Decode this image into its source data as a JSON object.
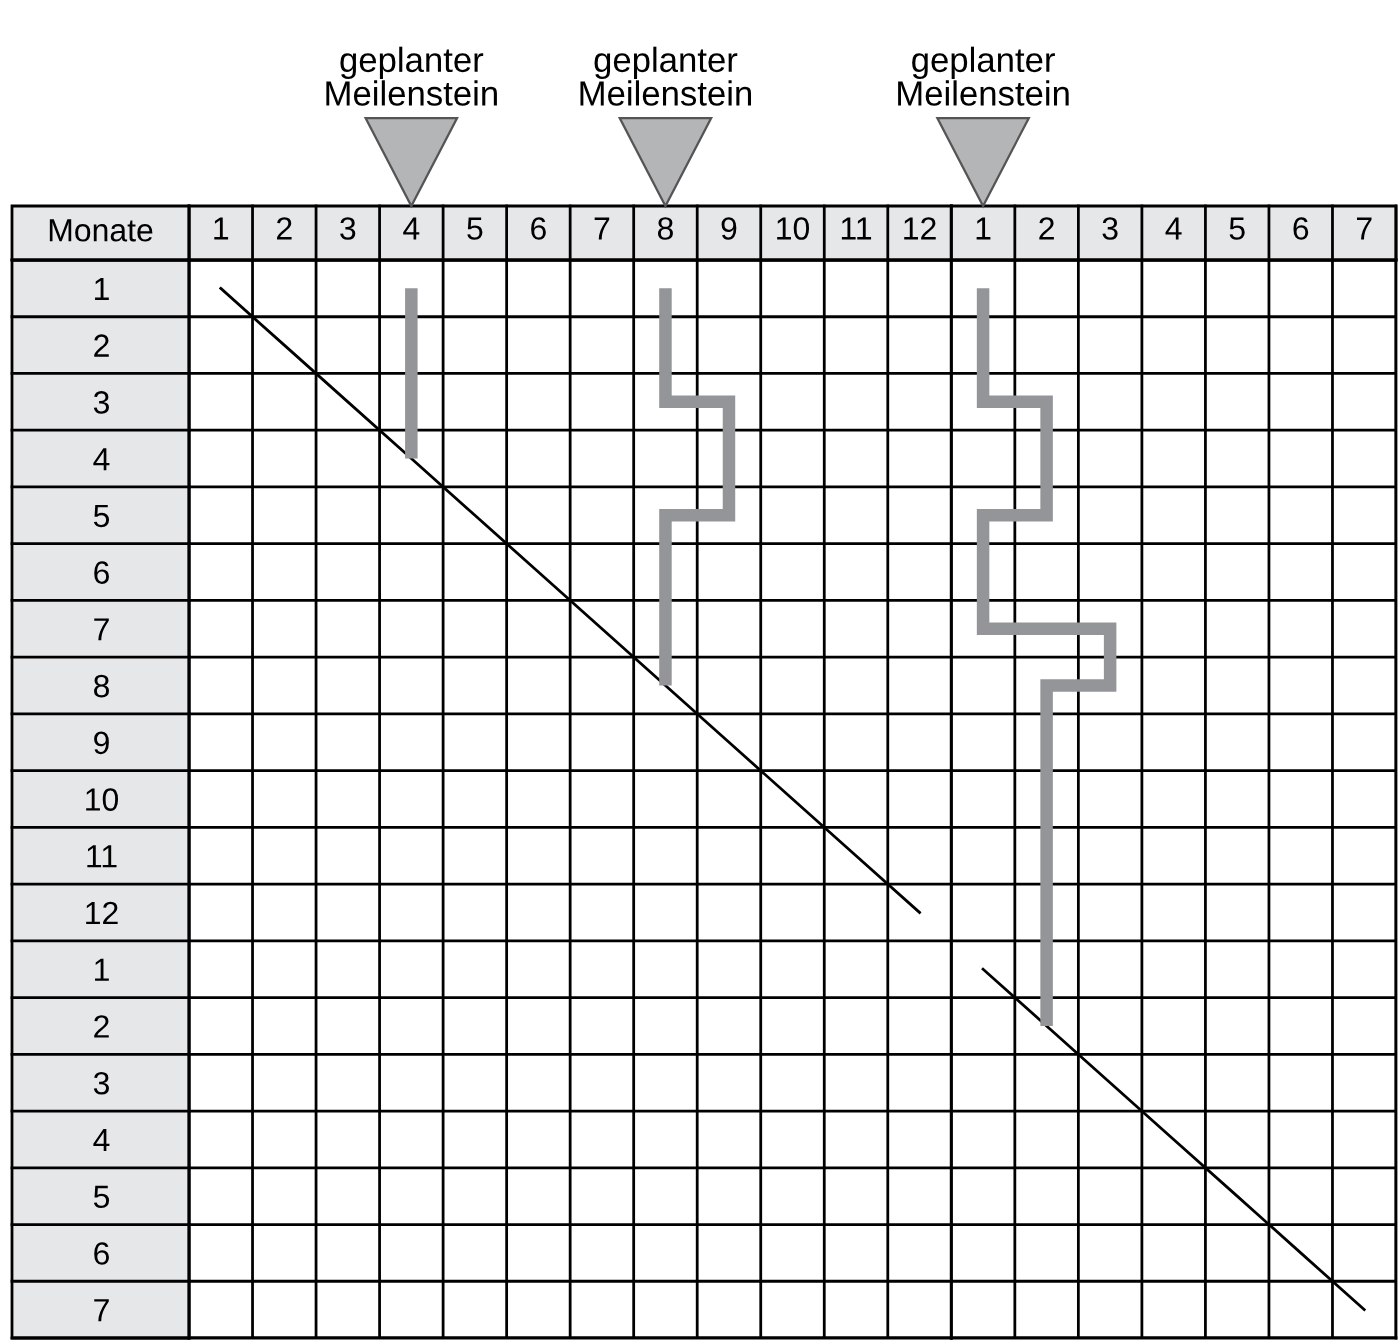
{
  "chart_data": [
    {
      "type": "step",
      "orientation": "horizontal",
      "ylabel": "Monate",
      "categories": [
        "1",
        "2",
        "3",
        "4",
        "5",
        "6",
        "7",
        "8",
        "9",
        "10",
        "11",
        "12",
        "1",
        "2",
        "3",
        "4",
        "5",
        "6",
        "7"
      ],
      "xlim": [
        0.5,
        12.5
      ],
      "xticks": [
        1,
        2,
        3,
        4,
        5,
        6,
        7,
        8,
        9,
        10,
        11,
        12
      ],
      "grid": true,
      "marker": "none",
      "line_style": "solid",
      "annotations": [
        "geplanter Meilenstein",
        "geplanter Meilenstein"
      ],
      "series": [
        {
          "type": "line",
          "color": "#000000",
          "values": [
            1,
            2,
            3,
            4,
            5,
            6,
            7,
            8,
            9,
            10,
            11,
            12,
            null,
            null,
            null,
            null,
            null,
            null,
            null
          ]
        },
        {
          "color": "#939598",
          "values": [
            4,
            4,
            4,
            4,
            null,
            null,
            null,
            null,
            null,
            null,
            null,
            null,
            null,
            null,
            null,
            null,
            null,
            null,
            null
          ]
        },
        {
          "color": "#939598",
          "values": [
            8,
            8,
            9,
            9,
            8,
            8,
            8,
            8,
            null,
            null,
            null,
            null,
            null,
            null,
            null,
            null,
            null,
            null,
            null
          ]
        }
      ]
    },
    {
      "type": "step",
      "orientation": "horizontal",
      "tick_labels": "x",
      "categories": [
        "1",
        "2",
        "3",
        "4",
        "5",
        "6",
        "7",
        "8",
        "9",
        "10",
        "11",
        "12",
        "1",
        "2",
        "3",
        "4",
        "5",
        "6",
        "7"
      ],
      "xlim": [
        0.5,
        7.5
      ],
      "xticks": [
        1,
        2,
        3,
        4,
        5,
        6,
        7
      ],
      "grid": true,
      "marker": "none",
      "line_style": "solid",
      "annotations": [
        "geplanter Meilenstein"
      ],
      "series": [
        {
          "type": "line",
          "color": "#000000",
          "values": [
            null,
            null,
            null,
            null,
            null,
            null,
            null,
            null,
            null,
            null,
            null,
            null,
            1,
            2,
            3,
            4,
            5,
            6,
            7
          ]
        },
        {
          "color": "#939598",
          "values": [
            1,
            1,
            2,
            2,
            1,
            1,
            3,
            2,
            2,
            2,
            2,
            2,
            2,
            2,
            null,
            null,
            null,
            null,
            null
          ]
        }
      ]
    }
  ]
}
